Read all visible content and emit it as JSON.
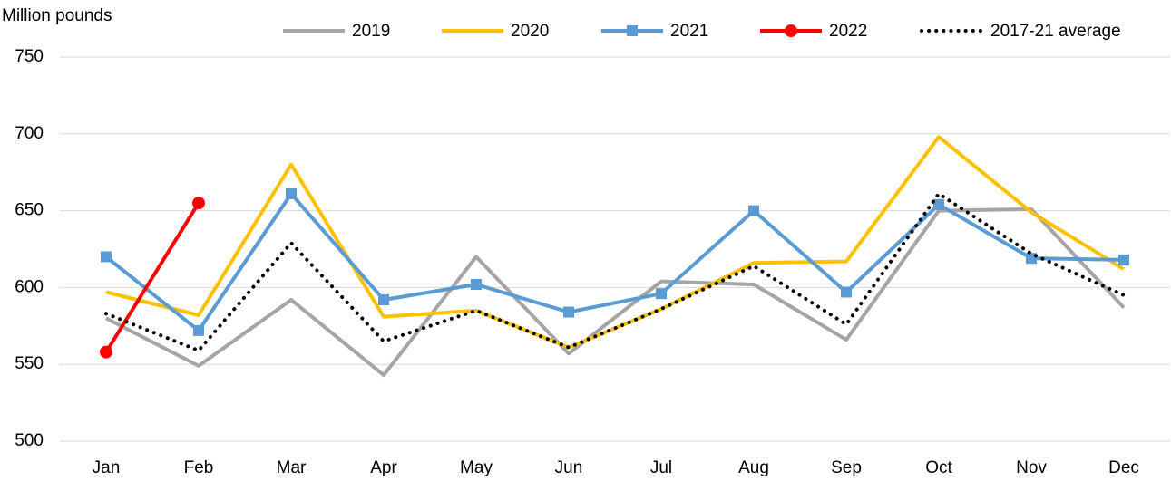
{
  "chart_data": {
    "type": "line",
    "y_label": "Million pounds",
    "categories": [
      "Jan",
      "Feb",
      "Mar",
      "Apr",
      "May",
      "Jun",
      "Jul",
      "Aug",
      "Sep",
      "Oct",
      "Nov",
      "Dec"
    ],
    "series": [
      {
        "name": "2019",
        "color": "#a5a5a5",
        "values": [
          580,
          549,
          592,
          543,
          620,
          557,
          604,
          602,
          566,
          650,
          651,
          587
        ]
      },
      {
        "name": "2020",
        "color": "#ffc000",
        "values": [
          597,
          582,
          680,
          581,
          585,
          561,
          586,
          616,
          617,
          698,
          649,
          612
        ]
      },
      {
        "name": "2021",
        "color": "#5b9bd5",
        "marker": "square",
        "values": [
          620,
          572,
          661,
          592,
          602,
          584,
          596,
          650,
          597,
          654,
          619,
          618
        ]
      },
      {
        "name": "2022",
        "color": "#ff0000",
        "marker": "circle",
        "values": [
          558,
          655,
          null,
          null,
          null,
          null,
          null,
          null,
          null,
          null,
          null,
          null
        ]
      },
      {
        "name": "2017-21 average",
        "color": "#000000",
        "dash": "dotted",
        "values": [
          583,
          559,
          629,
          565,
          585,
          561,
          586,
          614,
          576,
          661,
          622,
          595
        ]
      }
    ],
    "ylim": [
      500,
      750
    ],
    "yticks": [
      500,
      550,
      600,
      650,
      700,
      750
    ],
    "grid": true,
    "legend": "top"
  }
}
